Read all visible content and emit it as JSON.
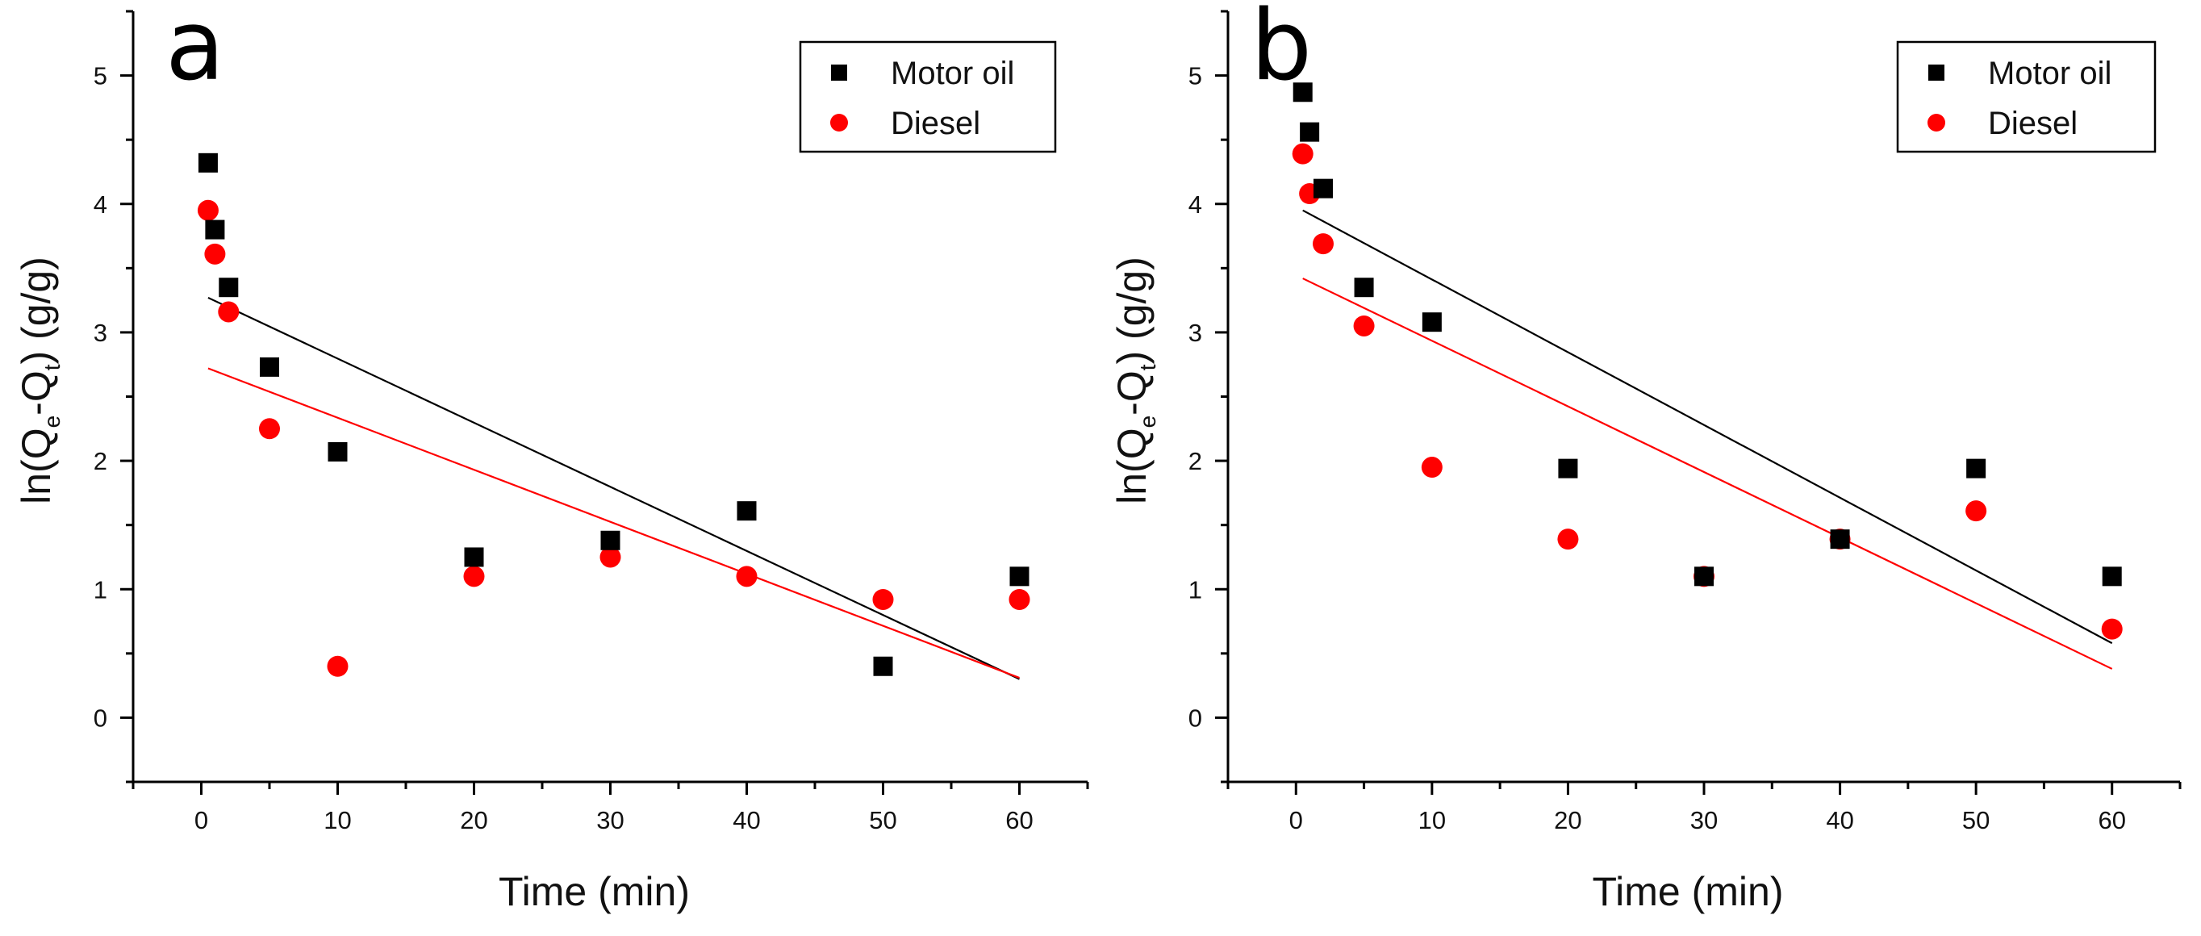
{
  "chart_data": [
    {
      "type": "scatter",
      "panel_label": "a",
      "xlabel": "Time (min)",
      "ylabel": {
        "prefix": "ln(Q",
        "sub1": "e",
        "mid": "-Q",
        "sub2": "t",
        "suffix": ") (g/g)"
      },
      "xlim": [
        -5,
        65
      ],
      "ylim": [
        -0.5,
        5.5
      ],
      "xticks": [
        0,
        10,
        20,
        30,
        40,
        50,
        60
      ],
      "yticks": [
        0,
        1,
        2,
        3,
        4,
        5
      ],
      "legend_position": "top-right",
      "series": [
        {
          "name": "Motor oil",
          "color": "#000000",
          "marker": "square",
          "x": [
            0.5,
            1,
            2,
            5,
            10,
            20,
            30,
            40,
            50,
            60
          ],
          "y": [
            4.32,
            3.8,
            3.35,
            2.73,
            2.07,
            1.25,
            1.38,
            1.61,
            0.4,
            1.1
          ],
          "fit": {
            "x": [
              0.5,
              60
            ],
            "y": [
              3.27,
              0.3
            ]
          }
        },
        {
          "name": "Diesel",
          "color": "#ff0000",
          "marker": "circle",
          "x": [
            0.5,
            1,
            2,
            5,
            10,
            20,
            30,
            40,
            50,
            60
          ],
          "y": [
            3.95,
            3.61,
            3.16,
            2.25,
            0.4,
            1.1,
            1.25,
            1.1,
            0.92,
            0.92
          ],
          "fit": {
            "x": [
              0.5,
              60
            ],
            "y": [
              2.72,
              0.31
            ]
          }
        }
      ]
    },
    {
      "type": "scatter",
      "panel_label": "b",
      "xlabel": "Time (min)",
      "ylabel": {
        "prefix": "ln(Q",
        "sub1": "e",
        "mid": "-Q",
        "sub2": "t",
        "suffix": ") (g/g)"
      },
      "xlim": [
        -5,
        65
      ],
      "ylim": [
        -0.5,
        5.5
      ],
      "xticks": [
        0,
        10,
        20,
        30,
        40,
        50,
        60
      ],
      "yticks": [
        0,
        1,
        2,
        3,
        4,
        5
      ],
      "legend_position": "top-right",
      "series": [
        {
          "name": "Motor oil",
          "color": "#000000",
          "marker": "square",
          "x": [
            0.5,
            1,
            2,
            5,
            10,
            20,
            30,
            40,
            50,
            60
          ],
          "y": [
            4.87,
            4.56,
            4.12,
            3.35,
            3.08,
            1.94,
            1.1,
            1.39,
            1.94,
            1.1
          ],
          "fit": {
            "x": [
              0.5,
              60
            ],
            "y": [
              3.95,
              0.58
            ]
          }
        },
        {
          "name": "Diesel",
          "color": "#ff0000",
          "marker": "circle",
          "x": [
            0.5,
            1,
            2,
            5,
            10,
            20,
            30,
            40,
            50,
            60
          ],
          "y": [
            4.39,
            4.08,
            3.69,
            3.05,
            1.95,
            1.39,
            1.1,
            1.39,
            1.61,
            0.69
          ],
          "fit": {
            "x": [
              0.5,
              60
            ],
            "y": [
              3.42,
              0.38
            ]
          }
        }
      ]
    }
  ]
}
